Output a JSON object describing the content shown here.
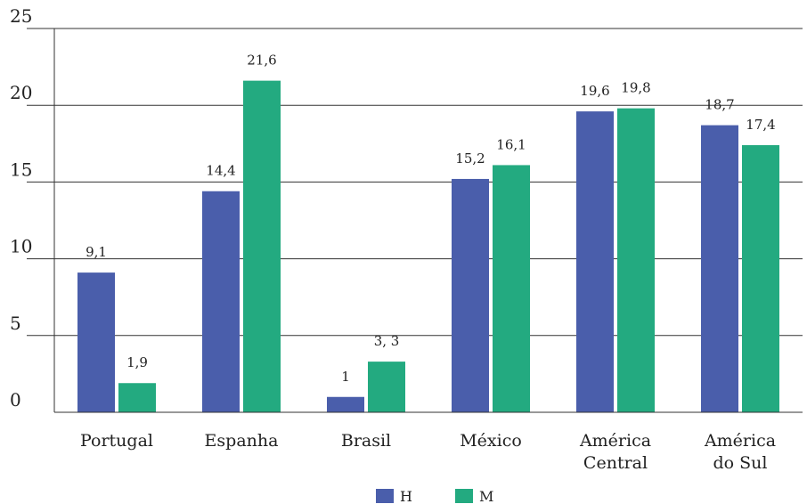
{
  "chart_data": {
    "type": "bar",
    "categories": [
      [
        "Portugal"
      ],
      [
        "Espanha"
      ],
      [
        "Brasil"
      ],
      [
        "México"
      ],
      [
        "América",
        "Central"
      ],
      [
        "América",
        "do Sul"
      ]
    ],
    "series": [
      {
        "name": "H",
        "color": "#4a5eab",
        "values": [
          9.1,
          14.4,
          1,
          15.2,
          19.6,
          18.7
        ],
        "labels": [
          "9,1",
          "14,4",
          "1",
          "15,2",
          "19,6",
          "18,7"
        ]
      },
      {
        "name": "M",
        "color": "#23aa80",
        "values": [
          1.9,
          21.6,
          3.3,
          16.1,
          19.8,
          17.4
        ],
        "labels": [
          "1,9",
          "21,6",
          "3, 3",
          "16,1",
          "19,8",
          "17,4"
        ]
      }
    ],
    "ylim": [
      0,
      25
    ],
    "yticks": [
      0,
      5,
      10,
      15,
      20,
      25
    ],
    "grid": true,
    "legend": "bottom-center",
    "title": "",
    "xlabel": "",
    "ylabel": ""
  }
}
